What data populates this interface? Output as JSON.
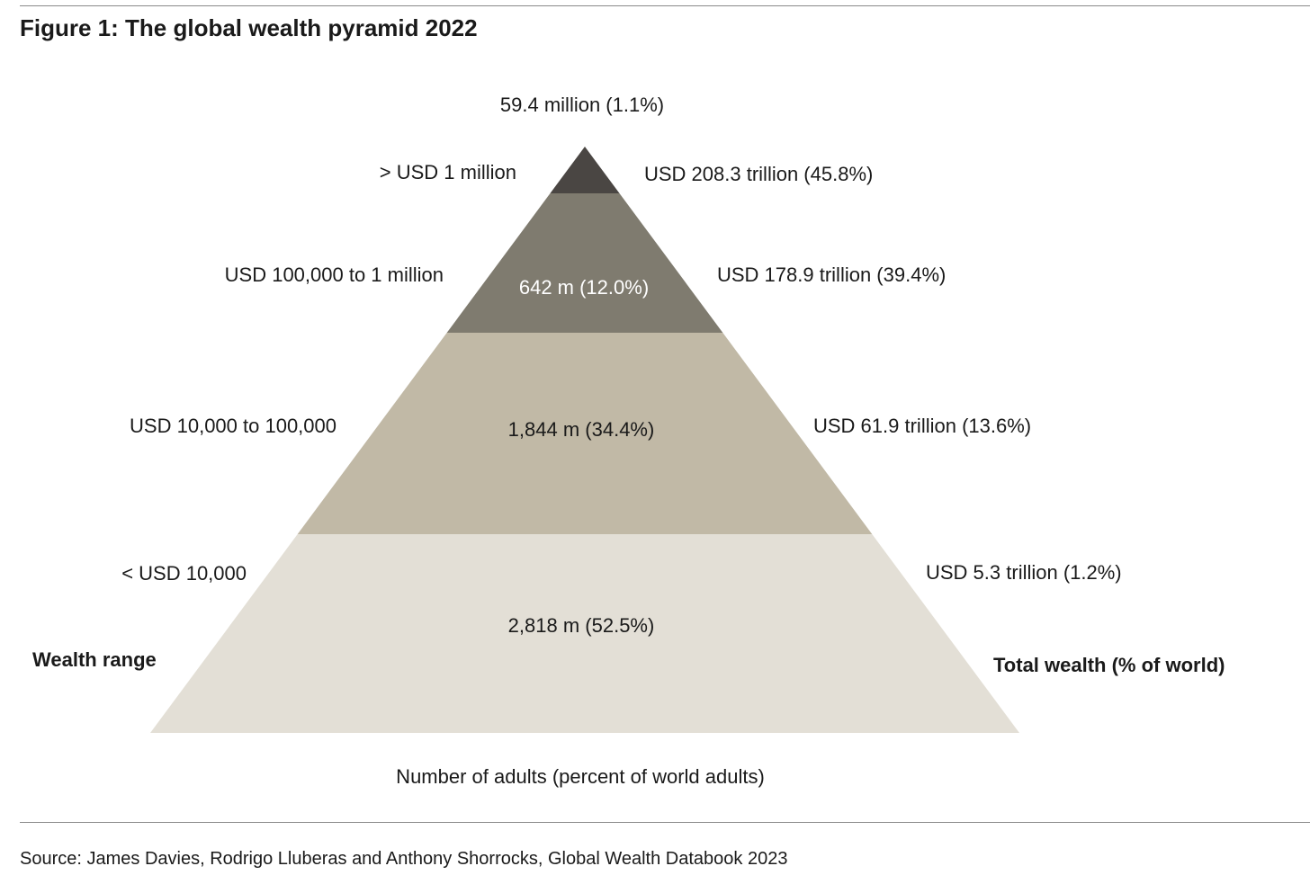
{
  "title": "Figure 1: The global wealth pyramid 2022",
  "source": "Source: James Davies, Rodrigo Lluberas and Anthony Shorrocks, Global Wealth Databook 2023",
  "chart_data": {
    "type": "pyramid",
    "left_axis_label": "Wealth range",
    "right_axis_label": "Total wealth (% of world)",
    "bottom_label": "Number of adults (percent of world adults)",
    "tiers": [
      {
        "wealth_range": ">  USD 1 million",
        "adults_label": "59.4 million (1.1%)",
        "adults_count_millions": 59.4,
        "adults_pct": 1.1,
        "total_wealth_label": "USD 208.3 trillion (45.8%)",
        "total_wealth_trillion": 208.3,
        "wealth_pct": 45.8,
        "color": "#4a4643"
      },
      {
        "wealth_range": "USD 100,000  to 1 million",
        "adults_label": "642 m (12.0%)",
        "adults_count_millions": 642,
        "adults_pct": 12.0,
        "total_wealth_label": "USD 178.9 trillion (39.4%)",
        "total_wealth_trillion": 178.9,
        "wealth_pct": 39.4,
        "color": "#7f7b6f"
      },
      {
        "wealth_range": "USD 10,000  to 100,000",
        "adults_label": "1,844 m (34.4%)",
        "adults_count_millions": 1844,
        "adults_pct": 34.4,
        "total_wealth_label": "USD 61.9 trillion (13.6%)",
        "total_wealth_trillion": 61.9,
        "wealth_pct": 13.6,
        "color": "#c1b9a6"
      },
      {
        "wealth_range": "< USD 10,000",
        "adults_label": "2,818 m (52.5%)",
        "adults_count_millions": 2818,
        "adults_pct": 52.5,
        "total_wealth_label": "USD 5.3 trillion (1.2%)",
        "total_wealth_trillion": 5.3,
        "wealth_pct": 1.2,
        "color": "#e3dfd6"
      }
    ]
  }
}
